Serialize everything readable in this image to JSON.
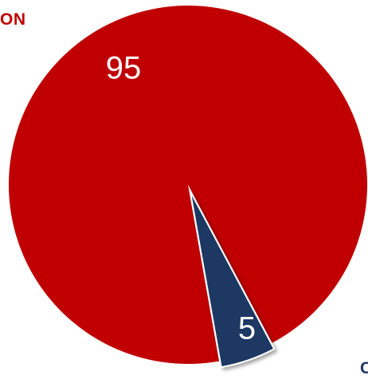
{
  "chart_data": {
    "type": "pie",
    "series": [
      {
        "name": "ON",
        "value": 95,
        "color": "#c00000"
      },
      {
        "name": "",
        "value": 5,
        "color": "#1f3864"
      }
    ],
    "data_labels": [
      "95",
      "5"
    ]
  },
  "legend": {
    "on_label": "ON",
    "on_color": "#c00000",
    "second_label_fragment": "C",
    "second_color": "#1f3864"
  }
}
